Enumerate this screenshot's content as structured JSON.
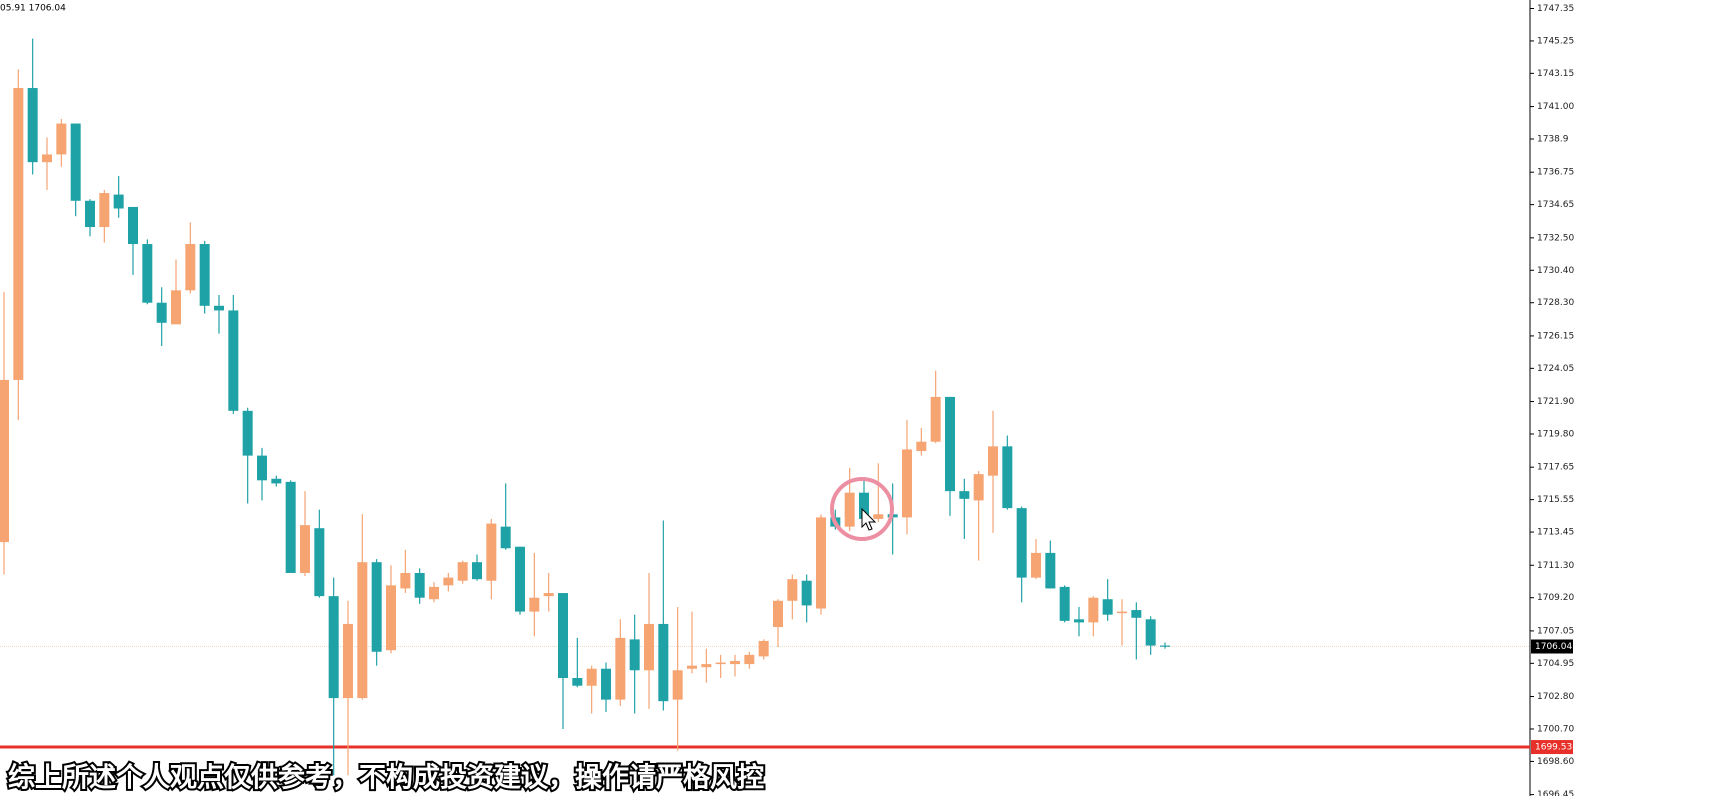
{
  "chart_data": {
    "type": "candlestick",
    "title": "05.91 1706.04",
    "caption": "综上所述个人观点仅供参考，不构成投资建议，操作请严格风控",
    "up_color": "#f6a472",
    "down_color": "#1fa2a6",
    "ylim": [
      1696.36,
      1747.9
    ],
    "yticks": [
      1747.35,
      1745.25,
      1743.15,
      {
        "value": 1741.0,
        "label": "1741.00"
      },
      1738.9,
      1736.75,
      1734.65,
      {
        "value": 1732.5,
        "label": "1732.50"
      },
      {
        "value": 1730.4,
        "label": "1730.40"
      },
      {
        "value": 1728.3,
        "label": "1728.30"
      },
      1726.15,
      1724.05,
      {
        "value": 1721.9,
        "label": "1721.90"
      },
      {
        "value": 1719.8,
        "label": "1719.80"
      },
      1717.65,
      1715.55,
      1713.45,
      {
        "value": 1711.3,
        "label": "1711.30"
      },
      {
        "value": 1709.2,
        "label": "1709.20"
      },
      1707.05,
      1704.95,
      {
        "value": 1702.8,
        "label": "1702.80"
      },
      {
        "value": 1700.7,
        "label": "1700.70"
      },
      {
        "value": 1698.6,
        "label": "1698.60"
      },
      1696.45
    ],
    "price_lines": [
      {
        "value": 1706.04,
        "color": "#000000"
      },
      {
        "value": 1699.53,
        "color": "#e8302a"
      }
    ],
    "open": [
      1712.8,
      1723.3,
      1742.2,
      1737.4,
      1737.9,
      1739.9,
      1734.9,
      1733.2,
      1735.3,
      1734.5,
      1732.1,
      1728.3,
      1726.9,
      1729.1,
      1732.1,
      1728.1,
      1727.8,
      1721.3,
      1718.4,
      1716.9,
      1716.7,
      1710.8,
      1713.7,
      1709.3,
      1702.7,
      1702.7,
      1711.5,
      1705.8,
      1709.8,
      1710.8,
      1709.1,
      1710.0,
      1710.3,
      1711.5,
      1710.3,
      1713.8,
      1712.5,
      1708.3,
      1709.3,
      1709.5,
      1704.0,
      1703.5,
      1704.6,
      1702.6,
      1706.5,
      1704.5,
      1707.5,
      1702.6,
      1704.6,
      1704.7,
      1704.9,
      1704.9,
      1704.9,
      1705.4,
      1707.3,
      1709.0,
      1710.3,
      1708.5,
      1714.4,
      1713.8,
      1716.0,
      1714.3,
      1714.6,
      1714.4,
      1718.7,
      1719.3,
      1722.2,
      1716.1,
      1715.5,
      1717.1,
      1719.0,
      1715.0,
      1710.5,
      1712.1,
      1709.9,
      1707.8,
      1707.6,
      1709.1,
      1708.2,
      1708.4,
      1707.8,
      1706.1
    ],
    "high": [
      1729.0,
      1743.4,
      1745.4,
      1739.0,
      1740.2,
      1739.9,
      1735.0,
      1735.6,
      1736.5,
      1734.5,
      1732.4,
      1729.3,
      1731.1,
      1733.5,
      1732.3,
      1728.8,
      1728.8,
      1721.5,
      1718.9,
      1717.1,
      1716.8,
      1716.1,
      1714.9,
      1710.5,
      1709.0,
      1714.6,
      1711.7,
      1711.3,
      1712.3,
      1711.1,
      1710.2,
      1710.8,
      1711.6,
      1712.0,
      1714.3,
      1716.6,
      1712.5,
      1712.1,
      1710.8,
      1709.5,
      1706.6,
      1704.8,
      1705.0,
      1707.8,
      1708.1,
      1710.8,
      1714.2,
      1708.6,
      1708.3,
      1705.9,
      1705.5,
      1705.5,
      1705.7,
      1706.5,
      1709.1,
      1710.7,
      1710.7,
      1714.6,
      1714.9,
      1717.6,
      1716.9,
      1717.9,
      1716.6,
      1720.7,
      1720.2,
      1723.9,
      1722.2,
      1716.9,
      1717.4,
      1721.3,
      1719.7,
      1715.1,
      1713.0,
      1712.9,
      1710.0,
      1708.6,
      1709.3,
      1710.4,
      1709.1,
      1708.9,
      1708.0,
      1706.3
    ],
    "low": [
      1710.7,
      1720.7,
      1736.6,
      1735.6,
      1737.1,
      1733.9,
      1732.6,
      1732.2,
      1733.8,
      1730.1,
      1728.2,
      1725.5,
      1726.9,
      1728.9,
      1727.6,
      1726.3,
      1721.1,
      1715.3,
      1715.5,
      1716.4,
      1710.8,
      1710.6,
      1709.2,
      1697.7,
      1697.7,
      1702.6,
      1704.8,
      1705.6,
      1709.5,
      1708.8,
      1708.9,
      1709.6,
      1710.1,
      1710.3,
      1709.1,
      1712.3,
      1708.1,
      1706.7,
      1708.3,
      1700.7,
      1703.4,
      1701.7,
      1701.8,
      1702.2,
      1701.7,
      1702.0,
      1701.9,
      1699.3,
      1704.3,
      1703.7,
      1704.0,
      1704.1,
      1704.6,
      1705.2,
      1706.0,
      1707.8,
      1707.6,
      1708.1,
      1713.6,
      1713.5,
      1714.1,
      1714.1,
      1712.0,
      1713.3,
      1718.4,
      1719.2,
      1714.5,
      1713.0,
      1711.6,
      1713.4,
      1714.9,
      1708.9,
      1710.4,
      1709.8,
      1707.6,
      1706.7,
      1706.7,
      1707.7,
      1706.1,
      1705.2,
      1705.5,
      1705.9
    ],
    "close": [
      1723.3,
      1742.2,
      1737.4,
      1737.9,
      1739.9,
      1734.9,
      1733.2,
      1735.4,
      1734.4,
      1732.1,
      1728.3,
      1727.0,
      1729.1,
      1732.1,
      1728.1,
      1727.8,
      1721.3,
      1718.4,
      1716.8,
      1716.6,
      1710.8,
      1713.9,
      1709.3,
      1702.7,
      1707.5,
      1711.5,
      1705.7,
      1710.0,
      1710.8,
      1709.2,
      1709.9,
      1710.5,
      1711.5,
      1710.4,
      1714.0,
      1712.4,
      1708.3,
      1709.2,
      1709.5,
      1704.0,
      1703.5,
      1704.6,
      1702.6,
      1706.6,
      1704.5,
      1707.5,
      1702.5,
      1704.5,
      1704.8,
      1704.9,
      1705.0,
      1705.1,
      1705.5,
      1706.4,
      1709.0,
      1710.4,
      1708.7,
      1714.4,
      1713.8,
      1716.0,
      1714.3,
      1714.6,
      1714.4,
      1718.8,
      1719.3,
      1722.2,
      1716.1,
      1715.6,
      1717.2,
      1719.0,
      1715.0,
      1710.5,
      1712.1,
      1709.8,
      1707.7,
      1707.6,
      1709.2,
      1708.1,
      1708.3,
      1707.9,
      1706.1,
      1706.04
    ]
  }
}
